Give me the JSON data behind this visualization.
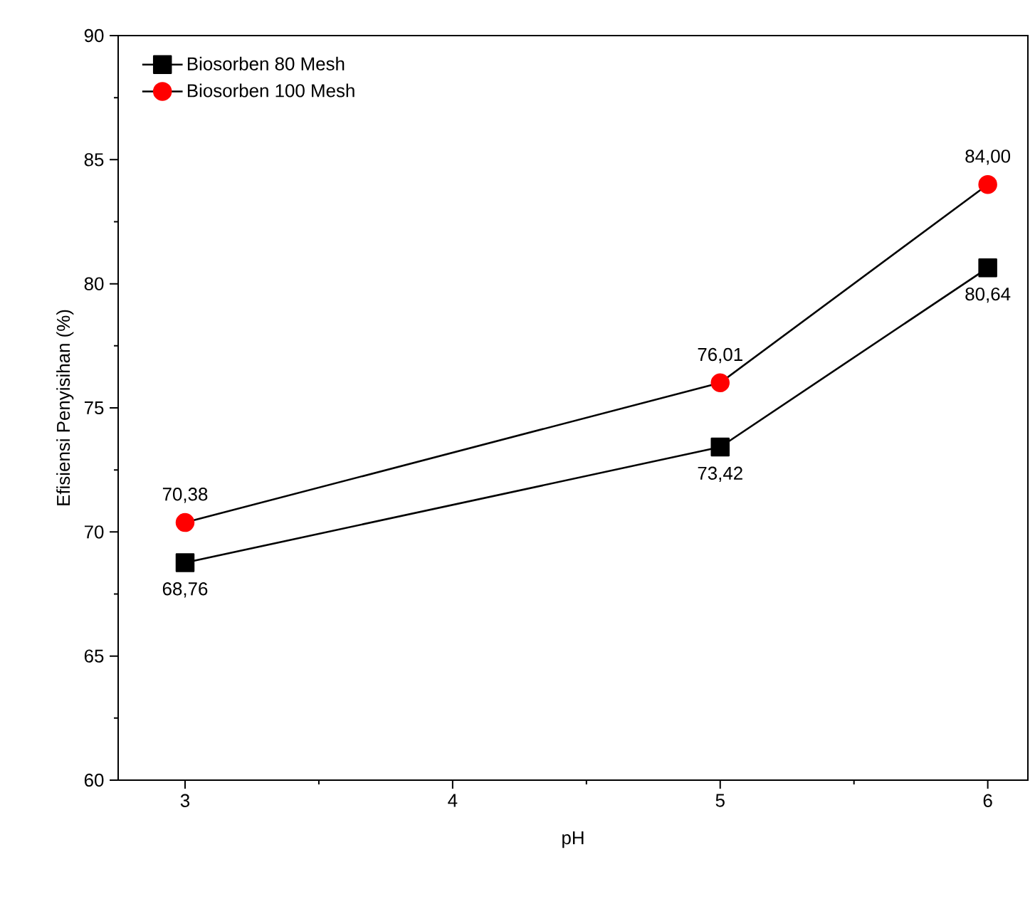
{
  "chart_data": {
    "type": "line",
    "xlabel": "pH",
    "ylabel": "Efisiensi Penyisihan (%)",
    "x": [
      3,
      5,
      6
    ],
    "series": [
      {
        "name": "Biosorben 80 Mesh",
        "color": "#000000",
        "marker": "square",
        "values": [
          68.76,
          73.42,
          80.64
        ],
        "value_labels": [
          "68,76",
          "73,42",
          "80,64"
        ]
      },
      {
        "name": "Biosorben 100 Mesh",
        "color": "#ff0000",
        "marker": "circle",
        "values": [
          70.38,
          76.01,
          84.0
        ],
        "value_labels": [
          "70,38",
          "76,01",
          "84,00"
        ]
      }
    ],
    "xlim": [
      2.75,
      6.15
    ],
    "xticks": [
      3,
      4,
      5,
      6
    ],
    "ylim": [
      60,
      90
    ],
    "yticks": [
      60,
      65,
      70,
      75,
      80,
      85,
      90
    ],
    "grid": false,
    "legend": "top left",
    "line_style": "solid"
  }
}
